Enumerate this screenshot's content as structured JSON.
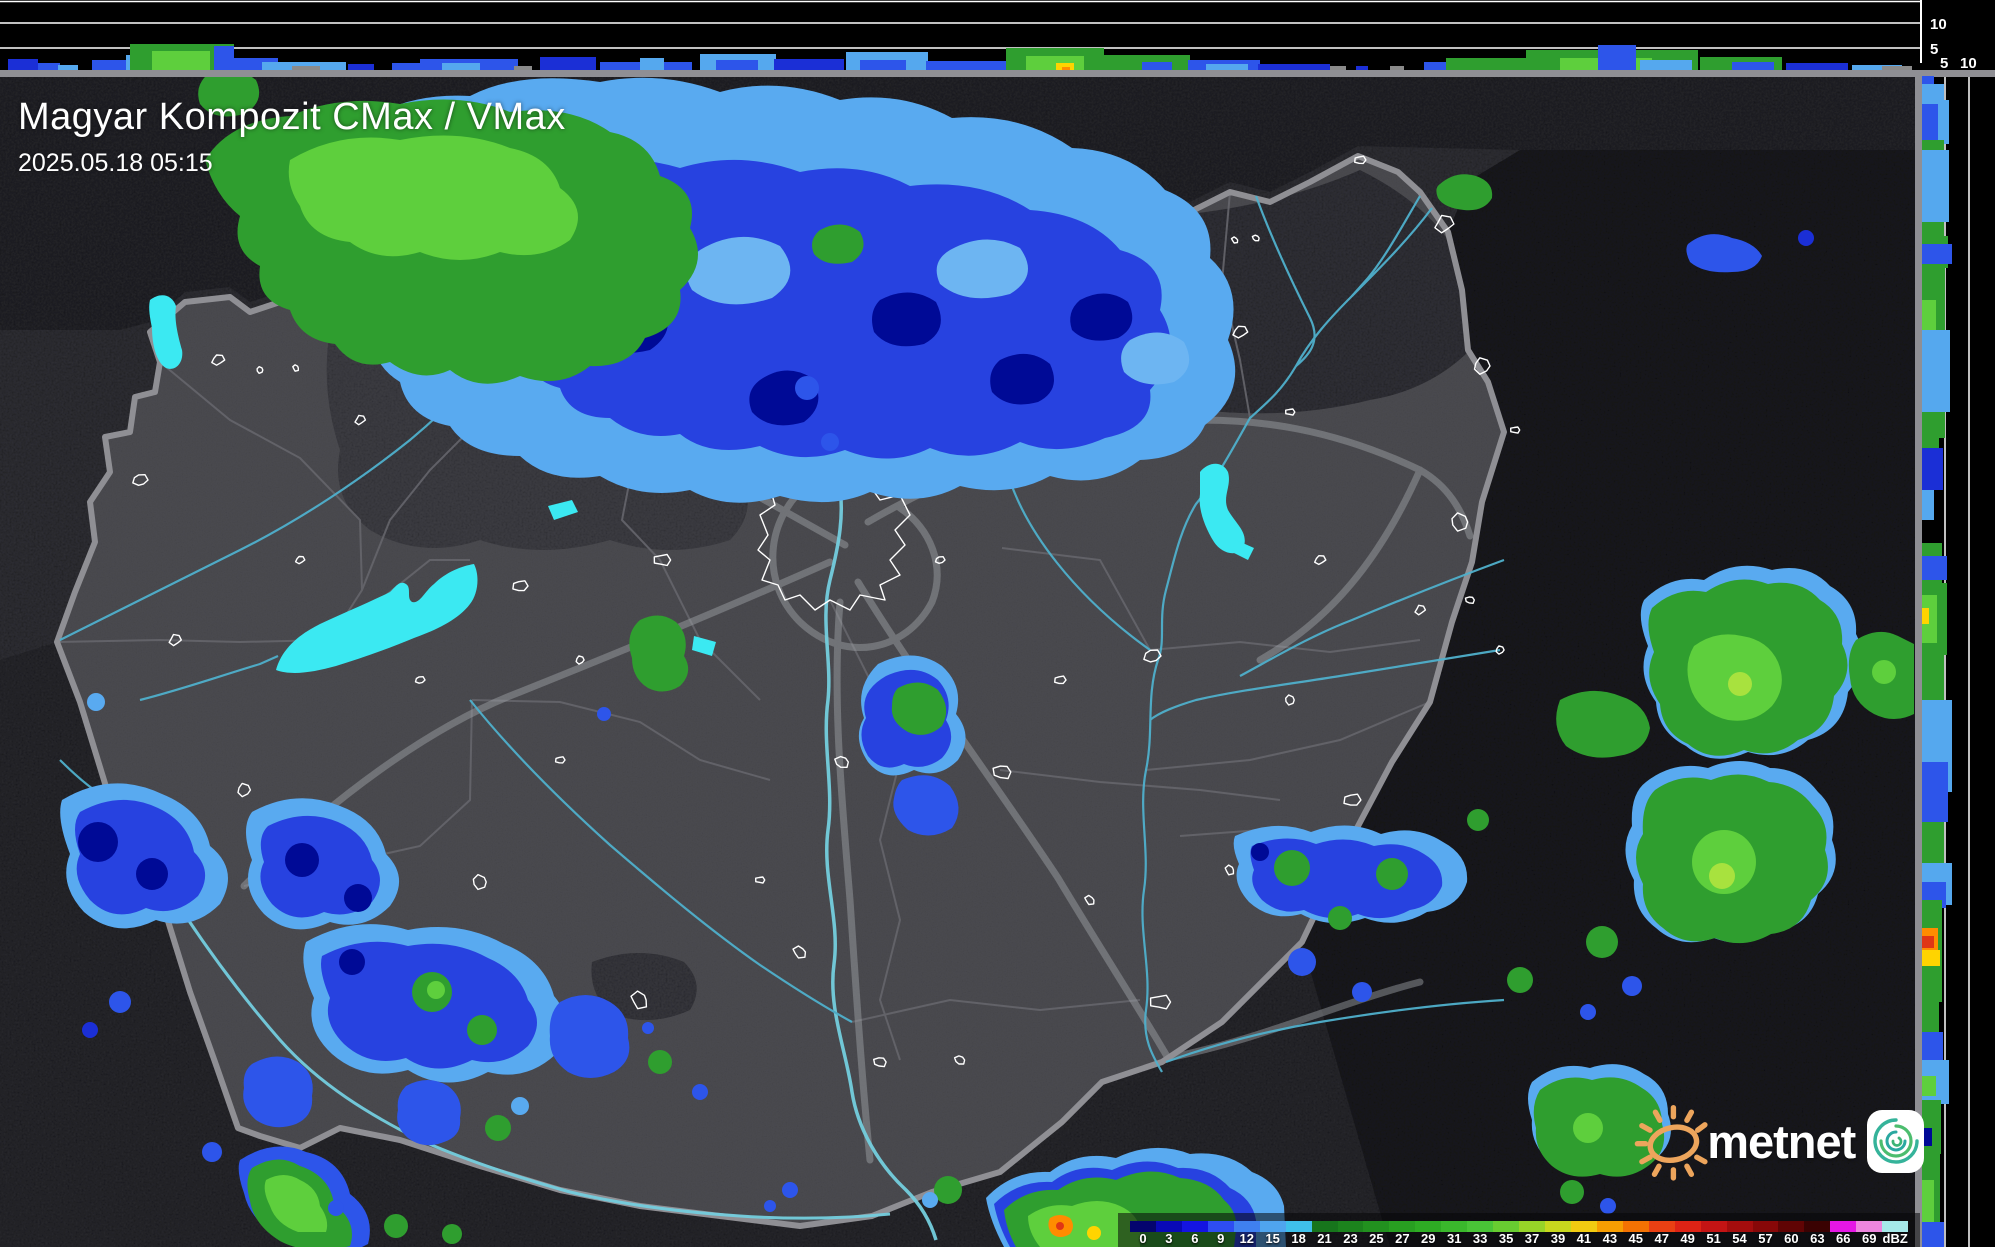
{
  "header": {
    "title": "Magyar Kompozit CMax / VMax",
    "timestamp": "2025.05.18 05:15"
  },
  "colorbar": {
    "tick_labels": [
      "0",
      "3",
      "6",
      "9",
      "12",
      "15",
      "18",
      "21",
      "23",
      "25",
      "27",
      "29",
      "31",
      "33",
      "35",
      "37",
      "39",
      "41",
      "43",
      "45",
      "47",
      "49",
      "51",
      "54",
      "57",
      "60",
      "63",
      "66",
      "69",
      "dBZ"
    ],
    "colors": [
      "#04046e",
      "#0909b6",
      "#1414e2",
      "#2e4df2",
      "#3f80f0",
      "#4fa5ee",
      "#3fc0ea",
      "#17751c",
      "#1c831d",
      "#22911f",
      "#28a021",
      "#2eac24",
      "#3ab82c",
      "#49c437",
      "#68cc31",
      "#97d428",
      "#c8d81e",
      "#f2cb11",
      "#f79e02",
      "#f37203",
      "#ea4013",
      "#de2315",
      "#c41414",
      "#a40d0d",
      "#870808",
      "#600404",
      "#3a0202",
      "#e517e5",
      "#ee86de",
      "#a5e9e9"
    ]
  },
  "profiles": {
    "top": {
      "gridline_labels": [
        "10",
        "5"
      ]
    },
    "right": {
      "gridline_labels": [
        "5",
        "10"
      ]
    },
    "palette": {
      "B0": "#000a96",
      "B1": "#1b2fd6",
      "B2": "#2d55ea",
      "LB": "#55a8ee",
      "G1": "#17751c",
      "G2": "#2f9e2f",
      "G3": "#5ecf3d",
      "G4": "#a8e23e",
      "YL": "#ffd400",
      "OR": "#ff8c00",
      "RD": "#e03515",
      "GY": "#8a8a8a"
    },
    "top_cells": [
      [
        8,
        30,
        11,
        "B1"
      ],
      [
        38,
        22,
        7,
        "B2"
      ],
      [
        58,
        20,
        5,
        "LB"
      ],
      [
        92,
        40,
        10,
        "B2"
      ],
      [
        126,
        60,
        15,
        "LB"
      ],
      [
        130,
        104,
        26,
        "G2"
      ],
      [
        152,
        58,
        19,
        "G3"
      ],
      [
        214,
        20,
        24,
        "B2"
      ],
      [
        234,
        44,
        12,
        "B2"
      ],
      [
        262,
        84,
        8,
        "LB"
      ],
      [
        292,
        28,
        4,
        "GY"
      ],
      [
        348,
        26,
        6,
        "B1"
      ],
      [
        392,
        28,
        7,
        "B2"
      ],
      [
        420,
        98,
        11,
        "B2"
      ],
      [
        442,
        38,
        7,
        "LB"
      ],
      [
        514,
        18,
        4,
        "GY"
      ],
      [
        540,
        56,
        13,
        "B1"
      ],
      [
        600,
        92,
        8,
        "B2"
      ],
      [
        640,
        24,
        12,
        "LB"
      ],
      [
        700,
        76,
        16,
        "LB"
      ],
      [
        716,
        42,
        10,
        "B2"
      ],
      [
        774,
        70,
        11,
        "B1"
      ],
      [
        846,
        82,
        18,
        "LB"
      ],
      [
        860,
        46,
        10,
        "B2"
      ],
      [
        926,
        82,
        9,
        "B2"
      ],
      [
        1006,
        98,
        22,
        "G2"
      ],
      [
        1026,
        58,
        14,
        "G3"
      ],
      [
        1056,
        18,
        7,
        "YL"
      ],
      [
        1062,
        8,
        3,
        "OR"
      ],
      [
        1100,
        90,
        15,
        "G2"
      ],
      [
        1142,
        30,
        8,
        "B2"
      ],
      [
        1188,
        72,
        10,
        "B2"
      ],
      [
        1206,
        42,
        6,
        "LB"
      ],
      [
        1258,
        72,
        6,
        "B1"
      ],
      [
        1330,
        16,
        4,
        "GY"
      ],
      [
        1356,
        12,
        4,
        "B1"
      ],
      [
        1390,
        14,
        4,
        "GY"
      ],
      [
        1424,
        62,
        8,
        "B2"
      ],
      [
        1446,
        82,
        12,
        "G2"
      ],
      [
        1526,
        172,
        20,
        "G2"
      ],
      [
        1560,
        92,
        12,
        "G3"
      ],
      [
        1598,
        38,
        25,
        "B2"
      ],
      [
        1640,
        52,
        10,
        "LB"
      ],
      [
        1700,
        82,
        13,
        "G2"
      ],
      [
        1732,
        42,
        8,
        "B2"
      ],
      [
        1786,
        62,
        7,
        "B1"
      ],
      [
        1852,
        50,
        5,
        "LB"
      ],
      [
        1882,
        30,
        4,
        "GY"
      ]
    ],
    "right_cells": [
      [
        76,
        16,
        12,
        "B2"
      ],
      [
        84,
        20,
        22,
        "LB"
      ],
      [
        100,
        44,
        27,
        "LB"
      ],
      [
        104,
        38,
        16,
        "B2"
      ],
      [
        140,
        98,
        22,
        "G2"
      ],
      [
        150,
        72,
        27,
        "LB"
      ],
      [
        236,
        32,
        26,
        "G2"
      ],
      [
        244,
        20,
        30,
        "B2"
      ],
      [
        266,
        172,
        23,
        "G2"
      ],
      [
        300,
        62,
        14,
        "G3"
      ],
      [
        330,
        82,
        28,
        "LB"
      ],
      [
        436,
        28,
        17,
        "G2"
      ],
      [
        448,
        42,
        21,
        "B1"
      ],
      [
        490,
        30,
        12,
        "LB"
      ],
      [
        543,
        40,
        20,
        "G2"
      ],
      [
        556,
        24,
        25,
        "B2"
      ],
      [
        583,
        72,
        25,
        "G2"
      ],
      [
        595,
        48,
        15,
        "G3"
      ],
      [
        608,
        16,
        7,
        "YL"
      ],
      [
        653,
        212,
        22,
        "G2"
      ],
      [
        700,
        92,
        30,
        "LB"
      ],
      [
        762,
        60,
        26,
        "B2"
      ],
      [
        863,
        42,
        30,
        "LB"
      ],
      [
        882,
        26,
        24,
        "B2"
      ],
      [
        900,
        102,
        20,
        "G2"
      ],
      [
        928,
        28,
        16,
        "OR"
      ],
      [
        936,
        12,
        12,
        "RD"
      ],
      [
        950,
        16,
        18,
        "YL"
      ],
      [
        1000,
        62,
        17,
        "G2"
      ],
      [
        1032,
        30,
        21,
        "B2"
      ],
      [
        1060,
        44,
        27,
        "LB"
      ],
      [
        1076,
        20,
        14,
        "G3"
      ],
      [
        1100,
        54,
        19,
        "G2"
      ],
      [
        1128,
        18,
        10,
        "B0"
      ],
      [
        1152,
        95,
        18,
        "G2"
      ],
      [
        1180,
        42,
        12,
        "G3"
      ],
      [
        1222,
        25,
        22,
        "B2"
      ]
    ]
  },
  "logo": {
    "brand": "metnet"
  }
}
